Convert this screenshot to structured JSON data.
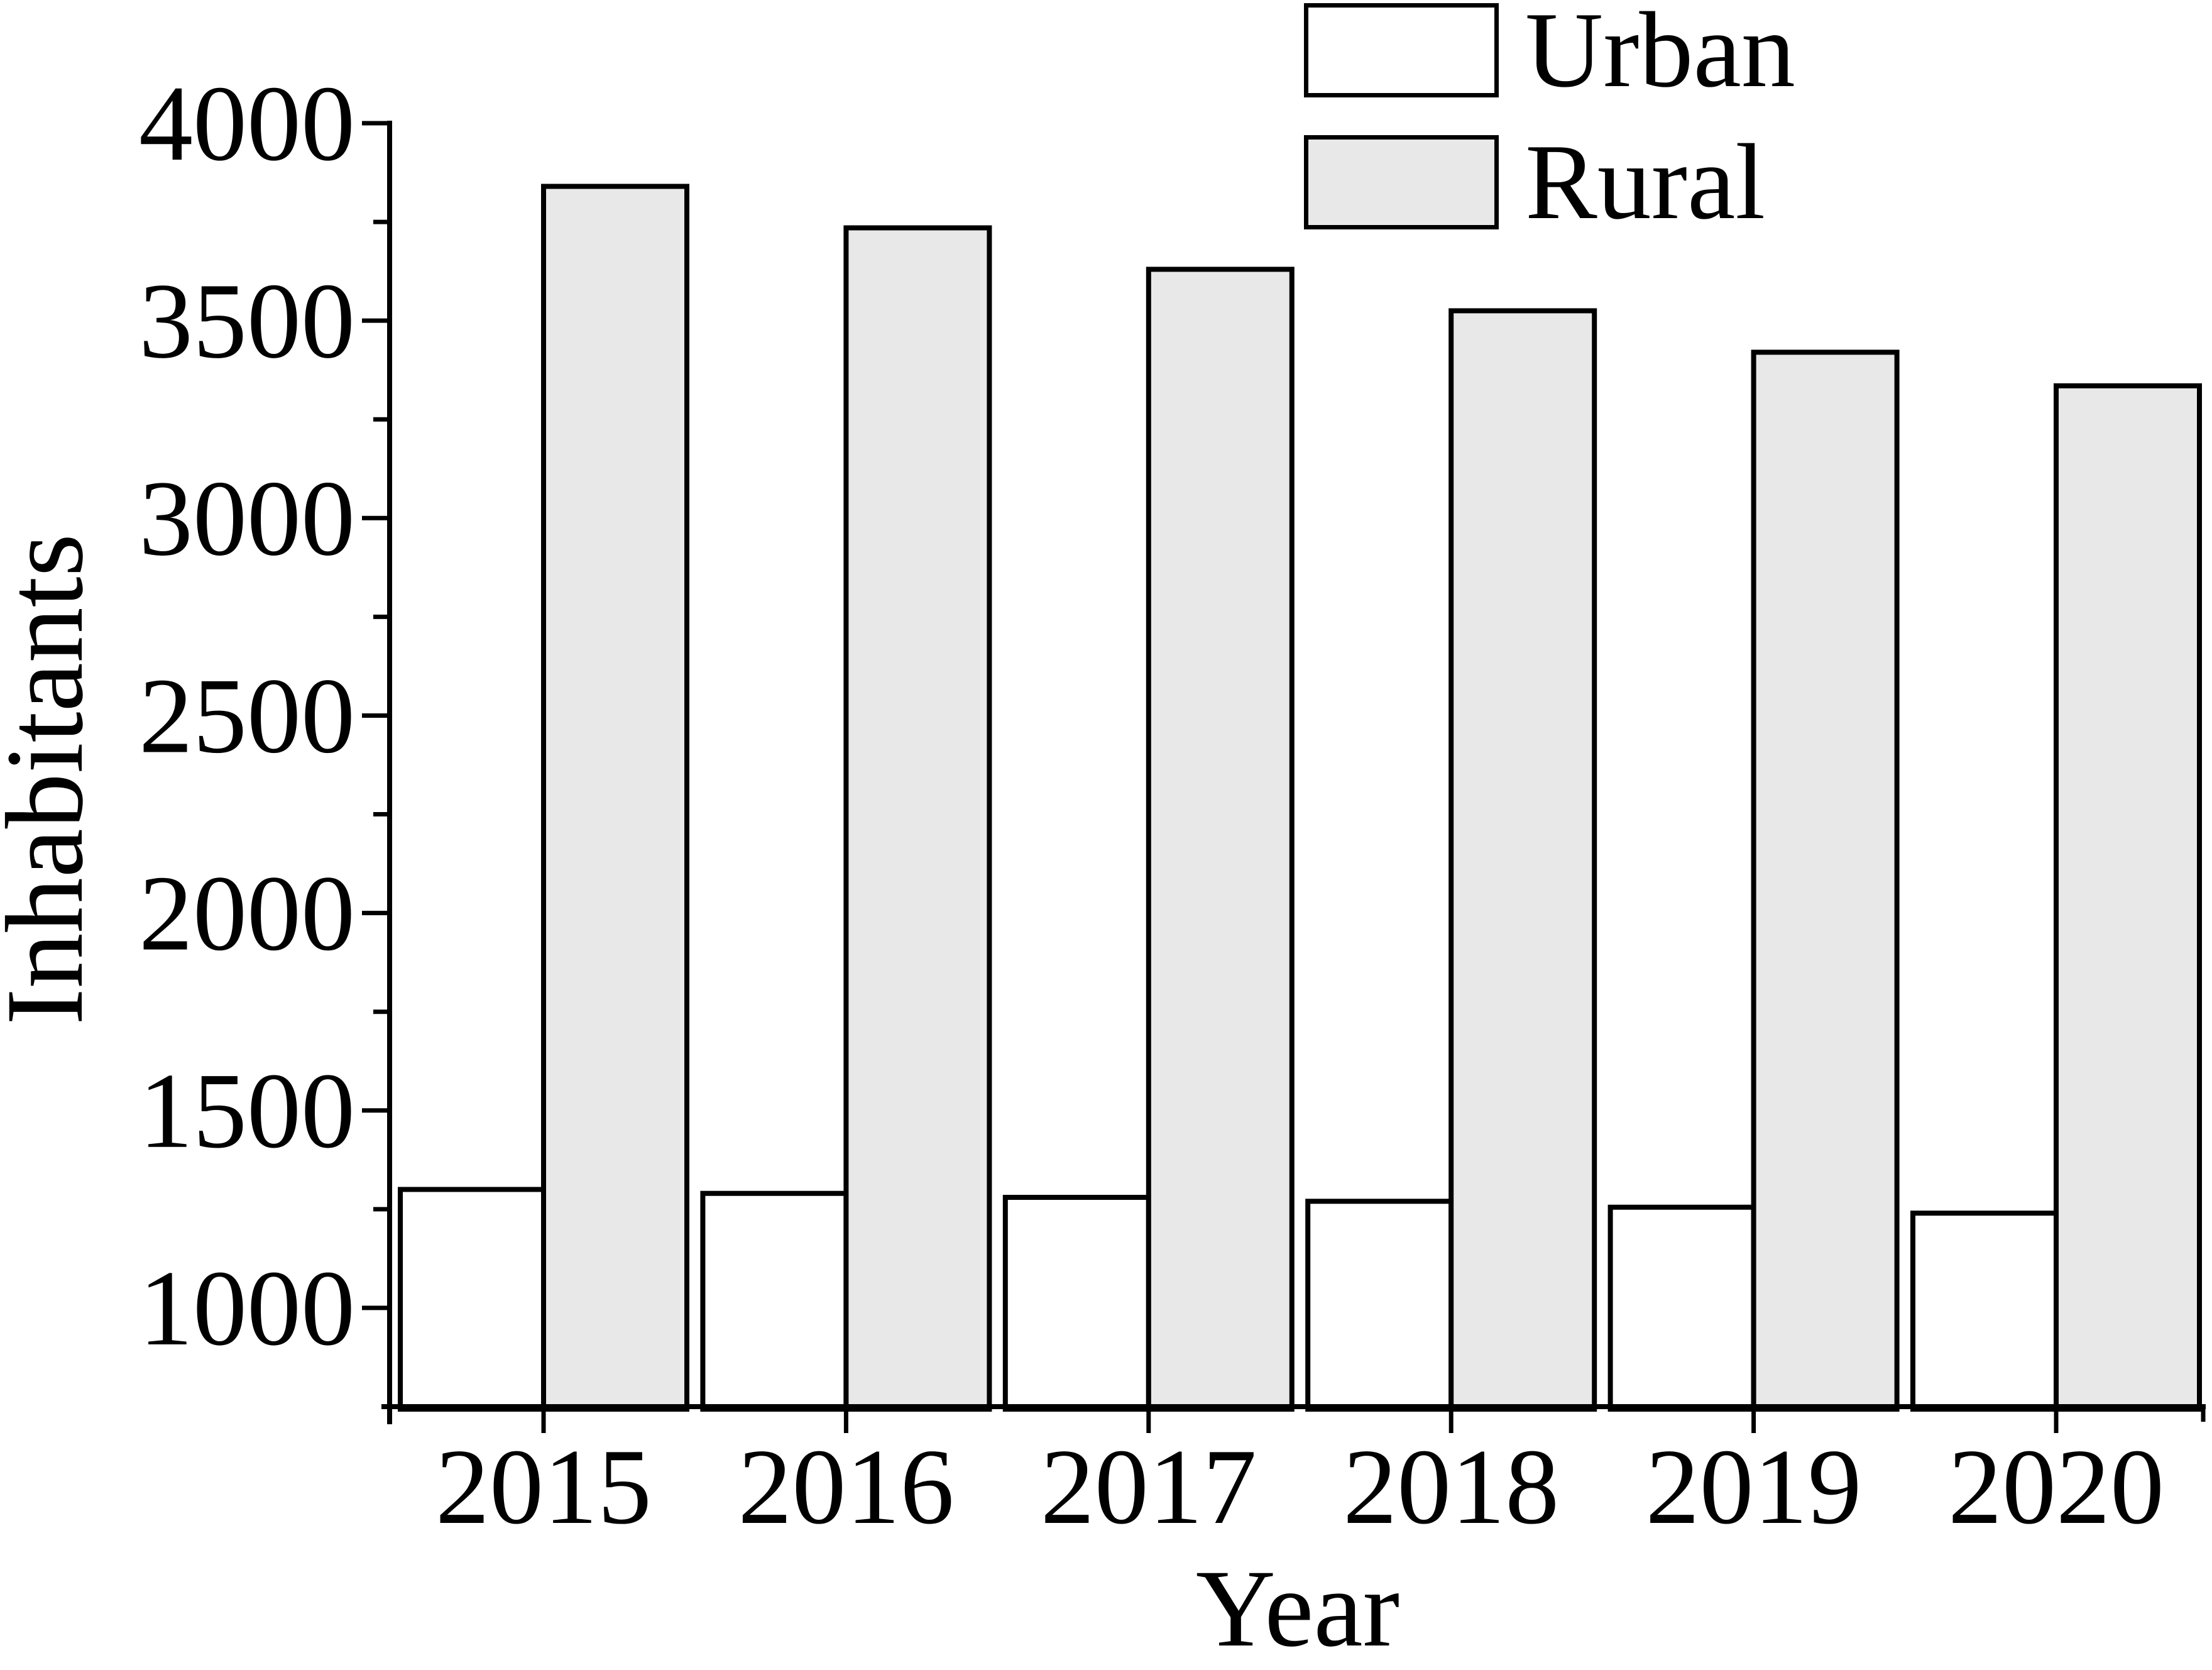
{
  "chart_data": {
    "type": "bar",
    "title": "",
    "categories": [
      "2015",
      "2016",
      "2017",
      "2018",
      "2019",
      "2020"
    ],
    "series": [
      {
        "name": "Urban",
        "values": [
          1300,
          1290,
          1280,
          1270,
          1255,
          1240
        ],
        "fill": "#ffffff"
      },
      {
        "name": "Rural",
        "values": [
          3840,
          3735,
          3630,
          3525,
          3420,
          3335
        ],
        "fill": "#e8e8e8"
      }
    ],
    "xlabel": "Year",
    "ylabel": "Inhabitants",
    "ylim": [
      750,
      4000
    ],
    "y_major_ticks": [
      1000,
      1500,
      2000,
      2500,
      3000,
      3500,
      4000
    ],
    "y_minor_ticks": [
      1250,
      1750,
      2250,
      2750,
      3250,
      3750
    ],
    "grid": false,
    "legend_position": "top-center",
    "bar_outline_color": "#000000",
    "axis_color": "#000000",
    "background": "#ffffff"
  }
}
